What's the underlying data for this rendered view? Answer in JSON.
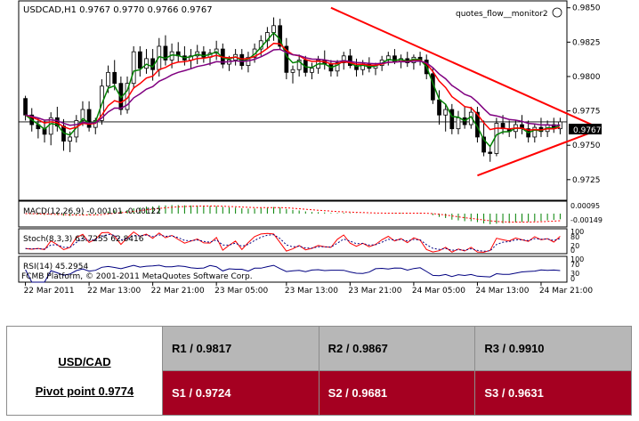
{
  "chart_data": {
    "type": "candlestick",
    "symbol_line": "USDCAD,H1  0.9767 0.9770 0.9766 0.9767",
    "indicator_name": "quotes_flow__monitor2",
    "price_axis_ticks": [
      "0.9850",
      "0.9825",
      "0.9800",
      "0.9775",
      "0.9750",
      "0.9725"
    ],
    "ylim": [
      0.971,
      0.9855
    ],
    "current_price": "0.9767",
    "current_price_value": 0.9767,
    "x_tick_labels": [
      "22 Mar 2011",
      "22 Mar 13:00",
      "22 Mar 21:00",
      "23 Mar 05:00",
      "23 Mar 13:00",
      "23 Mar 21:00",
      "24 Mar 05:00",
      "24 Mar 13:00",
      "24 Mar 21:00"
    ],
    "candles": [
      [
        0.9784,
        0.9786,
        0.9768,
        0.9772
      ],
      [
        0.9772,
        0.9777,
        0.976,
        0.9765
      ],
      [
        0.9765,
        0.977,
        0.9755,
        0.9762
      ],
      [
        0.9762,
        0.9768,
        0.9752,
        0.9758
      ],
      [
        0.9758,
        0.9774,
        0.975,
        0.977
      ],
      [
        0.977,
        0.9778,
        0.976,
        0.9764
      ],
      [
        0.9764,
        0.9769,
        0.9746,
        0.9753
      ],
      [
        0.9753,
        0.976,
        0.9745,
        0.9756
      ],
      [
        0.9756,
        0.9772,
        0.9752,
        0.9768
      ],
      [
        0.9768,
        0.9782,
        0.9764,
        0.9776
      ],
      [
        0.9776,
        0.9782,
        0.976,
        0.9763
      ],
      [
        0.9763,
        0.977,
        0.9758,
        0.9768
      ],
      [
        0.9768,
        0.9798,
        0.9765,
        0.9793
      ],
      [
        0.9793,
        0.9808,
        0.9788,
        0.9803
      ],
      [
        0.9803,
        0.9812,
        0.979,
        0.9795
      ],
      [
        0.9795,
        0.98,
        0.9772,
        0.9776
      ],
      [
        0.9776,
        0.98,
        0.9773,
        0.9795
      ],
      [
        0.9795,
        0.9822,
        0.9791,
        0.9818
      ],
      [
        0.9818,
        0.9822,
        0.98,
        0.9806
      ],
      [
        0.9806,
        0.982,
        0.9802,
        0.9813
      ],
      [
        0.9813,
        0.982,
        0.9797,
        0.9805
      ],
      [
        0.9805,
        0.9828,
        0.98,
        0.9822
      ],
      [
        0.9822,
        0.983,
        0.9808,
        0.9812
      ],
      [
        0.9812,
        0.9824,
        0.9806,
        0.9818
      ],
      [
        0.9818,
        0.9825,
        0.981,
        0.9815
      ],
      [
        0.9815,
        0.9822,
        0.9808,
        0.9812
      ],
      [
        0.9812,
        0.982,
        0.9806,
        0.9815
      ],
      [
        0.9815,
        0.9823,
        0.9809,
        0.9818
      ],
      [
        0.9818,
        0.9822,
        0.981,
        0.9814
      ],
      [
        0.9814,
        0.982,
        0.9808,
        0.9817
      ],
      [
        0.9817,
        0.9826,
        0.9812,
        0.982
      ],
      [
        0.982,
        0.9824,
        0.9806,
        0.9809
      ],
      [
        0.9809,
        0.9815,
        0.9804,
        0.9812
      ],
      [
        0.9812,
        0.982,
        0.9808,
        0.9816
      ],
      [
        0.9816,
        0.982,
        0.9805,
        0.9808
      ],
      [
        0.9808,
        0.9818,
        0.9803,
        0.9814
      ],
      [
        0.9814,
        0.9824,
        0.981,
        0.982
      ],
      [
        0.982,
        0.983,
        0.9815,
        0.9826
      ],
      [
        0.9826,
        0.9836,
        0.982,
        0.9832
      ],
      [
        0.9832,
        0.9843,
        0.9826,
        0.9837
      ],
      [
        0.9837,
        0.9842,
        0.982,
        0.9822
      ],
      [
        0.9822,
        0.9828,
        0.9798,
        0.9803
      ],
      [
        0.9803,
        0.9808,
        0.9795,
        0.9805
      ],
      [
        0.9805,
        0.9816,
        0.98,
        0.9812
      ],
      [
        0.9812,
        0.9815,
        0.98,
        0.9803
      ],
      [
        0.9803,
        0.981,
        0.9798,
        0.9806
      ],
      [
        0.9806,
        0.9815,
        0.9802,
        0.9812
      ],
      [
        0.9812,
        0.9819,
        0.9805,
        0.9809
      ],
      [
        0.9809,
        0.9812,
        0.98,
        0.9804
      ],
      [
        0.9804,
        0.9812,
        0.98,
        0.981
      ],
      [
        0.981,
        0.9818,
        0.9805,
        0.9815
      ],
      [
        0.9815,
        0.982,
        0.9806,
        0.9808
      ],
      [
        0.9808,
        0.9813,
        0.98,
        0.9805
      ],
      [
        0.9805,
        0.9812,
        0.9801,
        0.9809
      ],
      [
        0.9809,
        0.9814,
        0.9803,
        0.9806
      ],
      [
        0.9806,
        0.981,
        0.9801,
        0.9808
      ],
      [
        0.9808,
        0.9815,
        0.9804,
        0.9812
      ],
      [
        0.9812,
        0.9818,
        0.9808,
        0.9815
      ],
      [
        0.9815,
        0.982,
        0.9809,
        0.9811
      ],
      [
        0.9811,
        0.9816,
        0.9806,
        0.9813
      ],
      [
        0.9813,
        0.9818,
        0.9807,
        0.981
      ],
      [
        0.981,
        0.9816,
        0.9805,
        0.9814
      ],
      [
        0.9814,
        0.9818,
        0.9808,
        0.9812
      ],
      [
        0.9812,
        0.9816,
        0.9798,
        0.9802
      ],
      [
        0.9802,
        0.9806,
        0.978,
        0.9783
      ],
      [
        0.9783,
        0.979,
        0.9765,
        0.9772
      ],
      [
        0.9772,
        0.978,
        0.976,
        0.9776
      ],
      [
        0.9776,
        0.978,
        0.9758,
        0.9762
      ],
      [
        0.9762,
        0.9775,
        0.9758,
        0.977
      ],
      [
        0.977,
        0.9778,
        0.9762,
        0.9765
      ],
      [
        0.9765,
        0.9778,
        0.9762,
        0.9774
      ],
      [
        0.9774,
        0.9778,
        0.9752,
        0.9756
      ],
      [
        0.9756,
        0.9768,
        0.9742,
        0.9745
      ],
      [
        0.9745,
        0.975,
        0.9738,
        0.9744
      ],
      [
        0.9744,
        0.977,
        0.9742,
        0.9766
      ],
      [
        0.9766,
        0.9772,
        0.9758,
        0.9762
      ],
      [
        0.9762,
        0.9768,
        0.9756,
        0.976
      ],
      [
        0.976,
        0.9768,
        0.9755,
        0.9765
      ],
      [
        0.9765,
        0.9772,
        0.9758,
        0.9762
      ],
      [
        0.9762,
        0.9768,
        0.9752,
        0.9756
      ],
      [
        0.9756,
        0.9766,
        0.9752,
        0.9763
      ],
      [
        0.9763,
        0.977,
        0.9756,
        0.976
      ],
      [
        0.976,
        0.9768,
        0.9756,
        0.9765
      ],
      [
        0.9765,
        0.977,
        0.9759,
        0.9762
      ],
      [
        0.9762,
        0.977,
        0.9758,
        0.9767
      ]
    ],
    "triangle_lines": [
      {
        "from_index": 48,
        "from_price": 0.985,
        "to_index": 89,
        "to_price": 0.9762
      },
      {
        "from_index": 71,
        "from_price": 0.9728,
        "to_index": 89,
        "to_price": 0.9762
      }
    ],
    "macd_label": "MACD(12,26,9) -0.00101 -0.00122",
    "macd_axis_ticks": [
      "0.00095",
      "-0.00149"
    ],
    "stoch_label": "Stoch(8,3,3) 63.7255 62.8416",
    "stoch_axis_ticks": [
      "100",
      "80",
      "20",
      "0"
    ],
    "rsi_label": "RSI(14) 45.2954",
    "rsi_axis_ticks": [
      "100",
      "70",
      "30",
      "0"
    ],
    "copyright": "FCMB Platform, © 2001-2011 MetaQuotes Software Corp."
  },
  "table": {
    "pair": "USD/CAD",
    "pivot": "Pivot point 0.9774",
    "resistance": [
      "R1 / 0.9817",
      "R2 / 0.9867",
      "R3 / 0.9910"
    ],
    "support": [
      "S1 / 0.9724",
      "S2 / 0.9681",
      "S3 / 0.9631"
    ]
  }
}
